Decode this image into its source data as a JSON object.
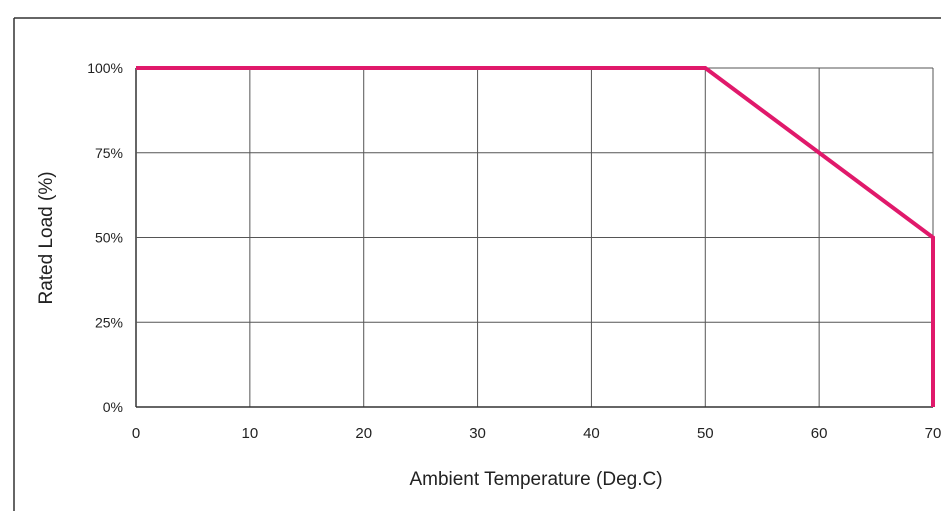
{
  "chart_data": {
    "type": "line",
    "title": "",
    "xlabel": "Ambient Temperature (Deg.C)",
    "ylabel": "Rated Load (%)",
    "xlim": [
      0,
      70
    ],
    "ylim": [
      0,
      100
    ],
    "x_ticks": [
      "0",
      "10",
      "20",
      "30",
      "40",
      "50",
      "60",
      "70"
    ],
    "y_ticks": [
      "0%",
      "25%",
      "50%",
      "75%",
      "100%"
    ],
    "grid": true,
    "legend": "none",
    "series": [
      {
        "color": "#e0196b",
        "points": [
          {
            "x": 0,
            "y": 100
          },
          {
            "x": 50,
            "y": 100
          },
          {
            "x": 70,
            "y": 50
          },
          {
            "x": 70,
            "y": 0
          }
        ]
      }
    ]
  }
}
